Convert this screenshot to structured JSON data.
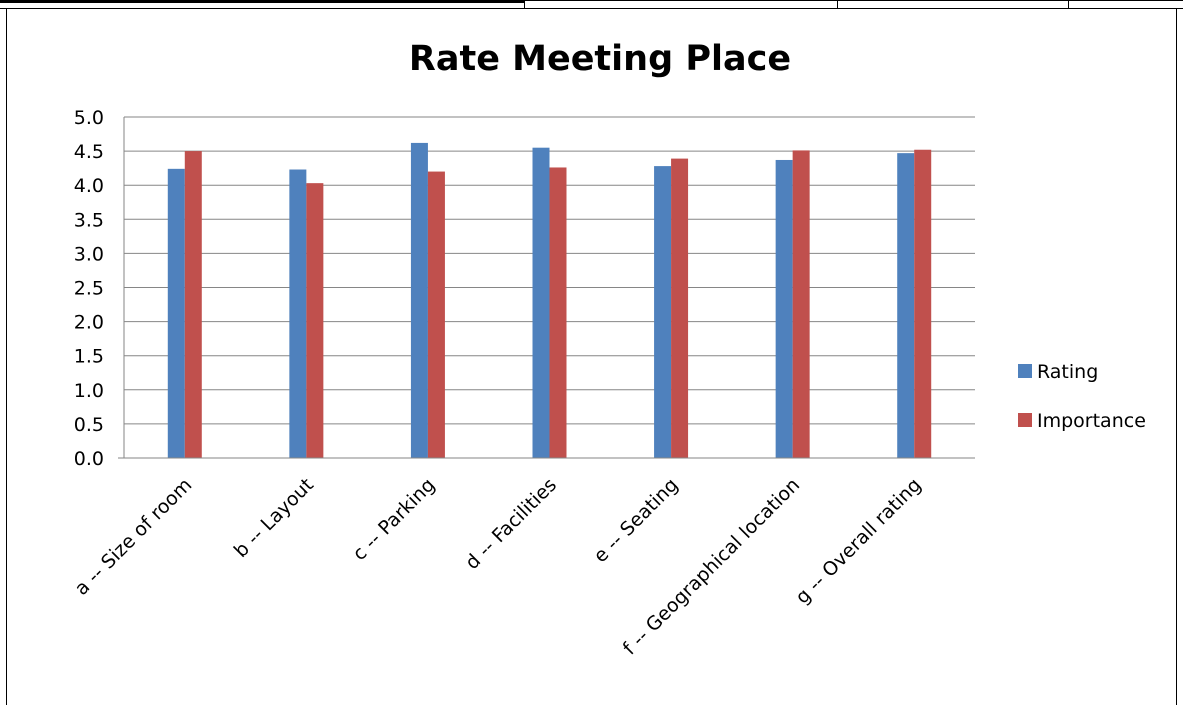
{
  "chart_data": {
    "type": "bar",
    "title": "Rate Meeting Place",
    "categories": [
      "a -- Size of room",
      "b -- Layout",
      "c -- Parking",
      "d -- Facilities",
      "e -- Seating",
      "f -- Geographical location",
      "g -- Overall rating"
    ],
    "series": [
      {
        "name": "Rating",
        "color": "#4F81BD",
        "values": [
          4.24,
          4.23,
          4.62,
          4.55,
          4.28,
          4.37,
          4.47
        ]
      },
      {
        "name": "Importance",
        "color": "#C0504D",
        "values": [
          4.5,
          4.03,
          4.2,
          4.26,
          4.39,
          4.51,
          4.52
        ]
      }
    ],
    "xlabel": "",
    "ylabel": "",
    "ylim": [
      0,
      5
    ],
    "ytick_step": 0.5,
    "ytick_labels": [
      "0.0",
      "0.5",
      "1.0",
      "1.5",
      "2.0",
      "2.5",
      "3.0",
      "3.5",
      "4.0",
      "4.5",
      "5.0"
    ],
    "grid": true,
    "legend_position": "right"
  }
}
